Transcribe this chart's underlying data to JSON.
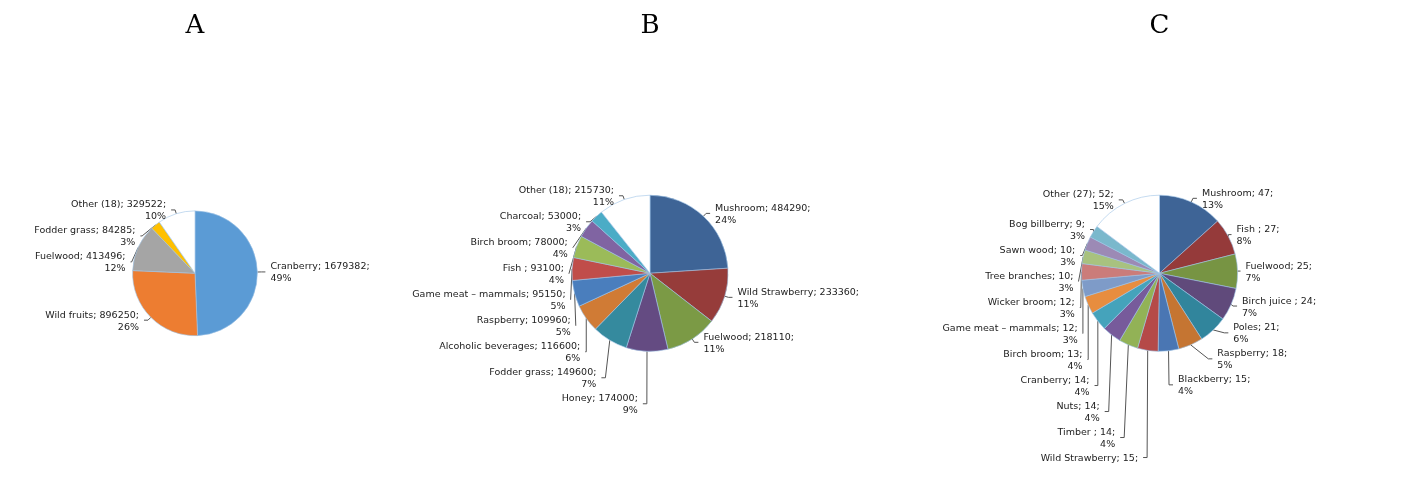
{
  "chart_data": [
    {
      "type": "pie",
      "title": "A",
      "categories": [
        "Cranberry",
        "Wild fruits",
        "Fuelwood",
        "Fodder grass",
        "Other (18)"
      ],
      "values": [
        1679382,
        896250,
        413496,
        84285,
        329522
      ],
      "colors": [
        "#5b9bd5",
        "#ed7d31",
        "#a5a5a5",
        "#ffc000",
        "#ffffff"
      ],
      "value_labels": [
        "1679382; 49%",
        "896250; 26%",
        "413496; 12%",
        "84285; 3%",
        "329522; 10%"
      ]
    },
    {
      "type": "pie",
      "title": "B",
      "categories": [
        "Mushroom",
        "Wild Strawberry",
        "Fuelwood",
        "Honey",
        "Fodder grass",
        "Alcoholic beverages",
        "Raspberry",
        "Game meat – mammals",
        "Fish ",
        "Birch broom",
        "Charcoal",
        "Other (18)"
      ],
      "values": [
        484290,
        233360,
        218110,
        174000,
        149600,
        116600,
        109960,
        95150,
        93100,
        78000,
        53000,
        215730
      ],
      "colors": [
        "#3e6496",
        "#963c3a",
        "#7b9a45",
        "#644b82",
        "#358a9e",
        "#d07b35",
        "#4a7ebd",
        "#c04d4a",
        "#9bbb59",
        "#8064a2",
        "#4bacc6",
        "#ffffff"
      ],
      "value_labels": [
        "484290; 24%",
        "233360; 11%",
        "218110; 11%",
        "174000; 9%",
        "149600; 7%",
        "116600; 6%",
        "109960; 5%",
        "95150; 5%",
        "93100; 4%",
        "78000; 4%",
        "53000; 3%",
        "215730; 11%"
      ]
    },
    {
      "type": "pie",
      "title": "C",
      "categories": [
        "Mushroom",
        "Fish ",
        "Fuelwood",
        "Birch juice ",
        "Poles",
        "Raspberry",
        "Blackberry",
        "Wild Strawberry",
        "Timber ",
        "Nuts",
        "Cranberry",
        "Birch broom",
        "Game meat – mammals",
        "Wicker broom",
        "Tree branches",
        "Sawn wood",
        "Bog billberry",
        "Other (27)"
      ],
      "values": [
        47,
        27,
        25,
        24,
        21,
        18,
        15,
        15,
        14,
        14,
        14,
        13,
        12,
        12,
        10,
        10,
        9,
        52
      ],
      "colors": [
        "#3e6496",
        "#953a3a",
        "#779443",
        "#604a7b",
        "#31859c",
        "#c57532",
        "#4a76b3",
        "#b54a48",
        "#92b256",
        "#775b9b",
        "#45a3bb",
        "#e78d3f",
        "#7e9bc8",
        "#cb7c7a",
        "#a8c27f",
        "#9c8ab5",
        "#7ab8cc",
        "#ffffff"
      ],
      "value_labels": [
        "47; 13%",
        "27; 8%",
        "25; 7%",
        "24; 7%",
        "21; 6%",
        "18; 5%",
        "15; 4%",
        "15;",
        "14; 4%",
        "14; 4%",
        "14; 4%",
        "13; 4%",
        "12; 3%",
        "12; 3%",
        "10; 3%",
        "10; 3%",
        "9; 3%",
        "52; 15%"
      ]
    }
  ]
}
